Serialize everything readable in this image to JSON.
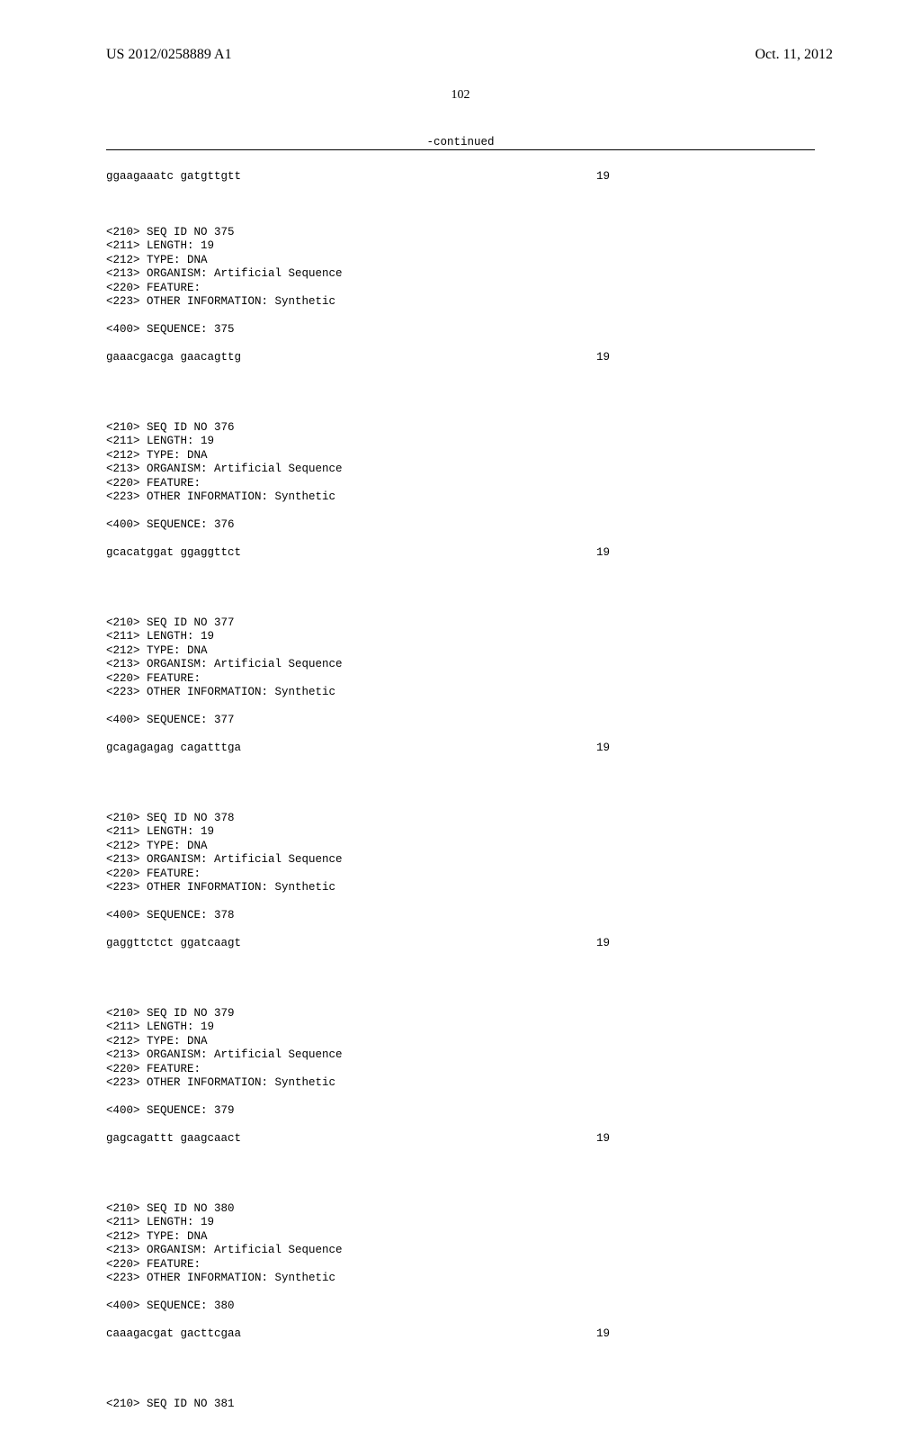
{
  "header": {
    "pub_number": "US 2012/0258889 A1",
    "pub_date": "Oct. 11, 2012",
    "page_number": "102",
    "continued_label": "-continued"
  },
  "first_sequence": {
    "text": "ggaagaaatc gatgttgtt",
    "length": "19"
  },
  "entries": [
    {
      "id": "375",
      "length_field": "19",
      "type": "DNA",
      "organism": "Artificial Sequence",
      "feature": "",
      "info": "Synthetic",
      "sequence": {
        "text": "gaaacgacga gaacagttg",
        "length": "19"
      }
    },
    {
      "id": "376",
      "length_field": "19",
      "type": "DNA",
      "organism": "Artificial Sequence",
      "feature": "",
      "info": "Synthetic",
      "sequence": {
        "text": "gcacatggat ggaggttct",
        "length": "19"
      }
    },
    {
      "id": "377",
      "length_field": "19",
      "type": "DNA",
      "organism": "Artificial Sequence",
      "feature": "",
      "info": "Synthetic",
      "sequence": {
        "text": "gcagagagag cagatttga",
        "length": "19"
      }
    },
    {
      "id": "378",
      "length_field": "19",
      "type": "DNA",
      "organism": "Artificial Sequence",
      "feature": "",
      "info": "Synthetic",
      "sequence": {
        "text": "gaggttctct ggatcaagt",
        "length": "19"
      }
    },
    {
      "id": "379",
      "length_field": "19",
      "type": "DNA",
      "organism": "Artificial Sequence",
      "feature": "",
      "info": "Synthetic",
      "sequence": {
        "text": "gagcagattt gaagcaact",
        "length": "19"
      }
    },
    {
      "id": "380",
      "length_field": "19",
      "type": "DNA",
      "organism": "Artificial Sequence",
      "feature": "",
      "info": "Synthetic",
      "sequence": {
        "text": "caaagacgat gacttcgaa",
        "length": "19"
      }
    }
  ],
  "trailing": {
    "id": "381"
  },
  "labels": {
    "seq_id": "<210> SEQ ID NO ",
    "length": "<211> LENGTH: ",
    "type": "<212> TYPE: ",
    "organism": "<213> ORGANISM: ",
    "feature": "<220> FEATURE:",
    "info": "<223> OTHER INFORMATION: ",
    "sequence_hdr": "<400> SEQUENCE: "
  }
}
